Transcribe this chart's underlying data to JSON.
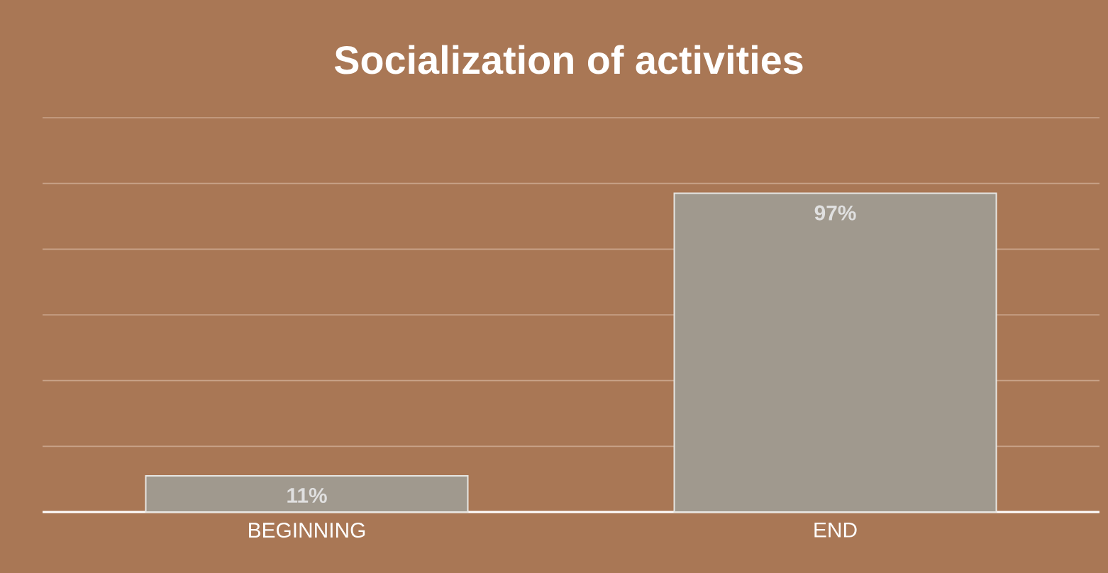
{
  "chart_data": {
    "type": "bar",
    "title": "Socialization of activities",
    "categories": [
      "BEGINNING",
      "END"
    ],
    "values": [
      11,
      97
    ],
    "value_labels": [
      "11%",
      "97%"
    ],
    "color": "#a0998e",
    "ylim": [
      0,
      120
    ],
    "yticks": [
      {
        "value": 0,
        "label": null
      },
      {
        "value": 20,
        "label": null
      },
      {
        "value": 40,
        "label": null
      },
      {
        "value": 60,
        "label": null
      },
      {
        "value": 80,
        "label": null
      },
      {
        "value": 100,
        "label": null
      },
      {
        "value": 120,
        "label": null
      }
    ],
    "grid": "y",
    "tick_labels": "x"
  }
}
